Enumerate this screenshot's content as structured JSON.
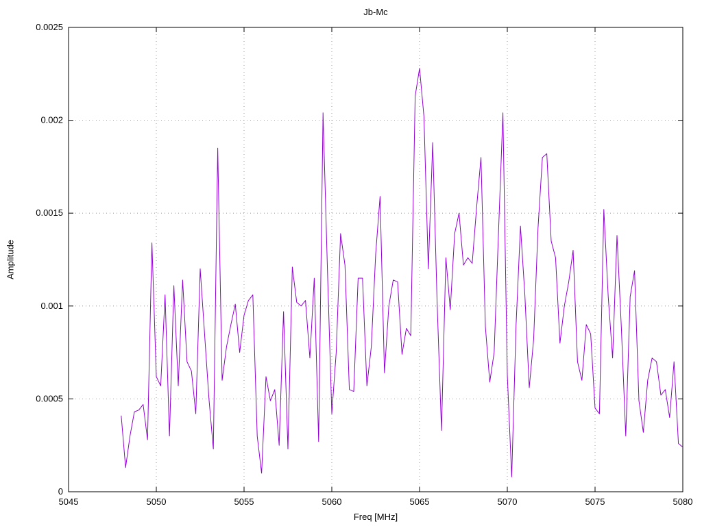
{
  "chart_data": {
    "type": "line",
    "title": "Jb-Mc",
    "xlabel": "Freq [MHz]",
    "ylabel": "Amplitude",
    "xlim": [
      5045,
      5080
    ],
    "ylim": [
      0,
      0.0025
    ],
    "grid": true,
    "grid_style": "dotted",
    "legend": "none",
    "line_color": "#9400d3",
    "border_color": "#000000",
    "grid_color": "#808080",
    "xticks": [
      {
        "value": 5045,
        "label": "5045"
      },
      {
        "value": 5050,
        "label": "5050"
      },
      {
        "value": 5055,
        "label": "5055"
      },
      {
        "value": 5060,
        "label": "5060"
      },
      {
        "value": 5065,
        "label": "5065"
      },
      {
        "value": 5070,
        "label": "5070"
      },
      {
        "value": 5075,
        "label": "5075"
      },
      {
        "value": 5080,
        "label": "5080"
      }
    ],
    "yticks": [
      {
        "value": 0,
        "label": "0"
      },
      {
        "value": 0.0005,
        "label": "0.0005"
      },
      {
        "value": 0.001,
        "label": "0.001"
      },
      {
        "value": 0.0015,
        "label": "0.0015"
      },
      {
        "value": 0.002,
        "label": "0.002"
      },
      {
        "value": 0.0025,
        "label": "0.0025"
      }
    ],
    "x": [
      5048,
      5048.25,
      5048.5,
      5048.75,
      5049,
      5049.25,
      5049.5,
      5049.75,
      5050,
      5050.25,
      5050.5,
      5050.75,
      5051,
      5051.25,
      5051.5,
      5051.75,
      5052,
      5052.25,
      5052.5,
      5052.75,
      5053,
      5053.25,
      5053.5,
      5053.75,
      5054,
      5054.25,
      5054.5,
      5054.75,
      5055,
      5055.25,
      5055.5,
      5055.75,
      5056,
      5056.25,
      5056.5,
      5056.75,
      5057,
      5057.25,
      5057.5,
      5057.75,
      5058,
      5058.25,
      5058.5,
      5058.75,
      5059,
      5059.25,
      5059.5,
      5059.75,
      5060,
      5060.25,
      5060.5,
      5060.75,
      5061,
      5061.25,
      5061.5,
      5061.75,
      5062,
      5062.25,
      5062.5,
      5062.75,
      5063,
      5063.25,
      5063.5,
      5063.75,
      5064,
      5064.25,
      5064.5,
      5064.75,
      5065,
      5065.25,
      5065.5,
      5065.75,
      5066,
      5066.25,
      5066.5,
      5066.75,
      5067,
      5067.25,
      5067.5,
      5067.75,
      5068,
      5068.25,
      5068.5,
      5068.75,
      5069,
      5069.25,
      5069.5,
      5069.75,
      5070,
      5070.25,
      5070.5,
      5070.75,
      5071,
      5071.25,
      5071.5,
      5071.75,
      5072,
      5072.25,
      5072.5,
      5072.75,
      5073,
      5073.25,
      5073.5,
      5073.75,
      5074,
      5074.25,
      5074.5,
      5074.75,
      5075,
      5075.25,
      5075.5,
      5075.75,
      5076,
      5076.25,
      5076.5,
      5076.75,
      5077,
      5077.25,
      5077.5,
      5077.75,
      5078,
      5078.25,
      5078.5,
      5078.75,
      5079,
      5079.25,
      5079.5,
      5079.75,
      5080
    ],
    "values": [
      0.00041,
      0.00013,
      0.0003,
      0.00043,
      0.00044,
      0.00047,
      0.00028,
      0.00134,
      0.00062,
      0.00057,
      0.00106,
      0.0003,
      0.00111,
      0.00057,
      0.00114,
      0.0007,
      0.00065,
      0.00042,
      0.0012,
      0.00085,
      0.0005,
      0.00023,
      0.00185,
      0.0006,
      0.00078,
      0.0009,
      0.00101,
      0.00075,
      0.00095,
      0.00103,
      0.00106,
      0.0003,
      0.0001,
      0.00062,
      0.00049,
      0.00055,
      0.00025,
      0.00097,
      0.00023,
      0.00121,
      0.00102,
      0.001,
      0.00103,
      0.00072,
      0.00115,
      0.00027,
      0.00204,
      0.0012,
      0.00042,
      0.00075,
      0.00139,
      0.00122,
      0.00055,
      0.00054,
      0.00115,
      0.00115,
      0.00057,
      0.00078,
      0.00128,
      0.00159,
      0.00064,
      0.001,
      0.00114,
      0.00113,
      0.00074,
      0.00088,
      0.00084,
      0.00213,
      0.00228,
      0.00202,
      0.0012,
      0.00188,
      0.00102,
      0.00033,
      0.00126,
      0.00098,
      0.00139,
      0.0015,
      0.00122,
      0.00126,
      0.00123,
      0.00153,
      0.0018,
      0.00089,
      0.00059,
      0.00075,
      0.0014,
      0.00204,
      0.00063,
      8e-05,
      0.0009,
      0.00143,
      0.00106,
      0.00056,
      0.00082,
      0.00142,
      0.0018,
      0.00182,
      0.00135,
      0.00126,
      0.0008,
      0.001,
      0.00113,
      0.0013,
      0.0007,
      0.0006,
      0.0009,
      0.00085,
      0.00045,
      0.00042,
      0.00152,
      0.00105,
      0.00072,
      0.00138,
      0.00088,
      0.0003,
      0.00105,
      0.00119,
      0.00049,
      0.00032,
      0.0006,
      0.00072,
      0.0007,
      0.00052,
      0.00055,
      0.0004,
      0.0007,
      0.00026,
      0.00024
    ]
  }
}
